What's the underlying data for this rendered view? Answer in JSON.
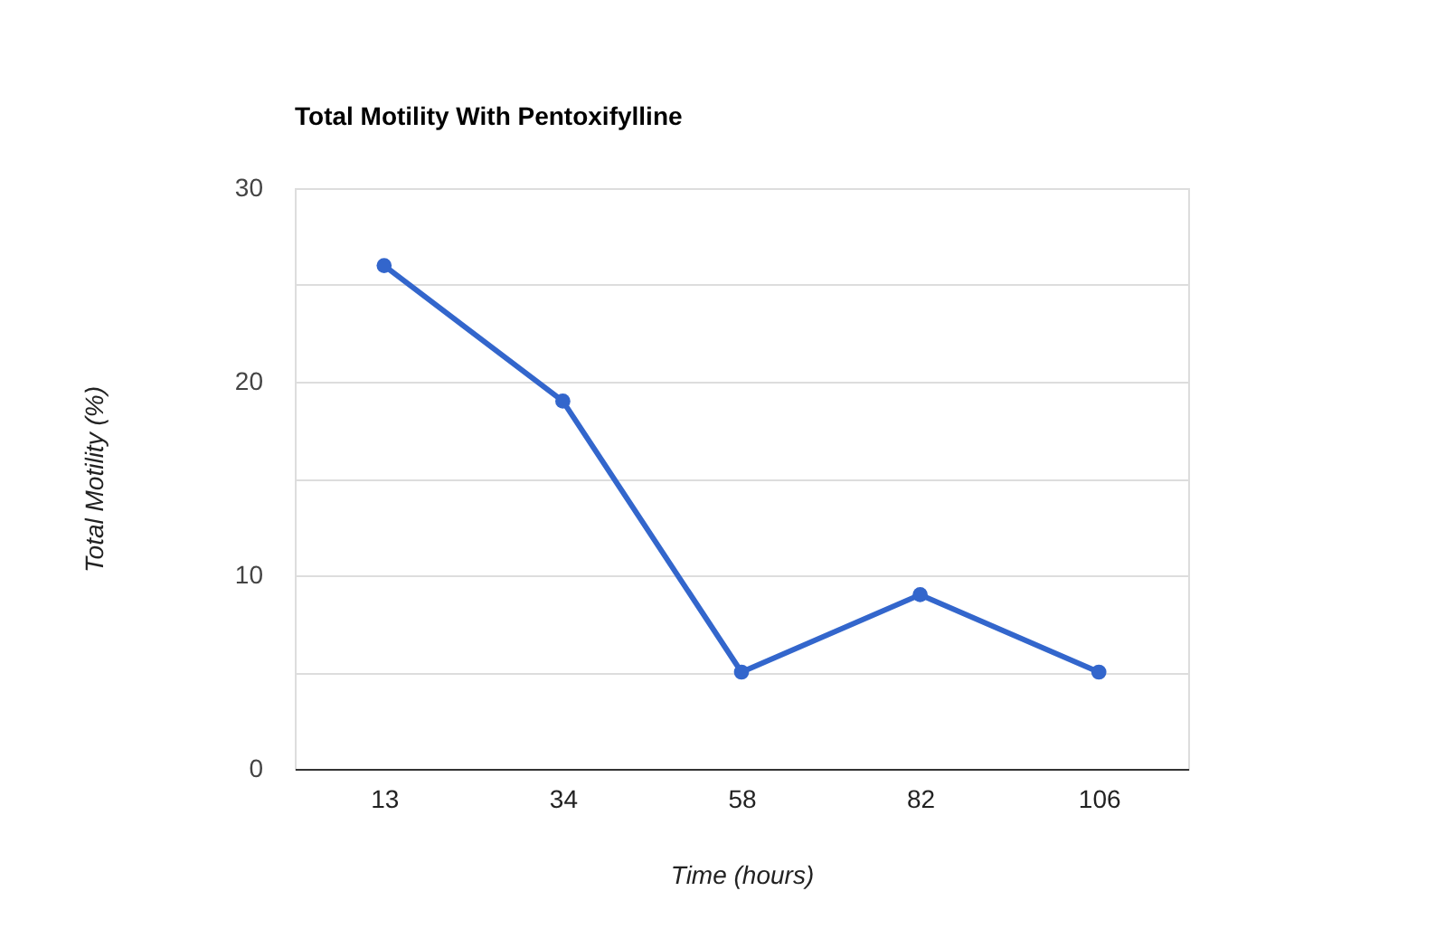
{
  "chart_data": {
    "type": "line",
    "title": "Total Motility With Pentoxifylline",
    "xlabel": "Time (hours)",
    "ylabel": "Total Motility (%)",
    "categories": [
      "13",
      "34",
      "58",
      "82",
      "106"
    ],
    "series": [
      {
        "color": "#3366cc",
        "values": [
          26,
          19,
          5,
          9,
          5
        ]
      }
    ],
    "ylim": [
      0,
      30
    ],
    "yticks": [
      0,
      {
        "value": 5,
        "label": null
      },
      10,
      {
        "value": 15,
        "label": null
      },
      20,
      {
        "value": 25,
        "label": null
      },
      30
    ],
    "grid": "y",
    "marker": "circle",
    "line_style": "solid",
    "legend": false
  }
}
